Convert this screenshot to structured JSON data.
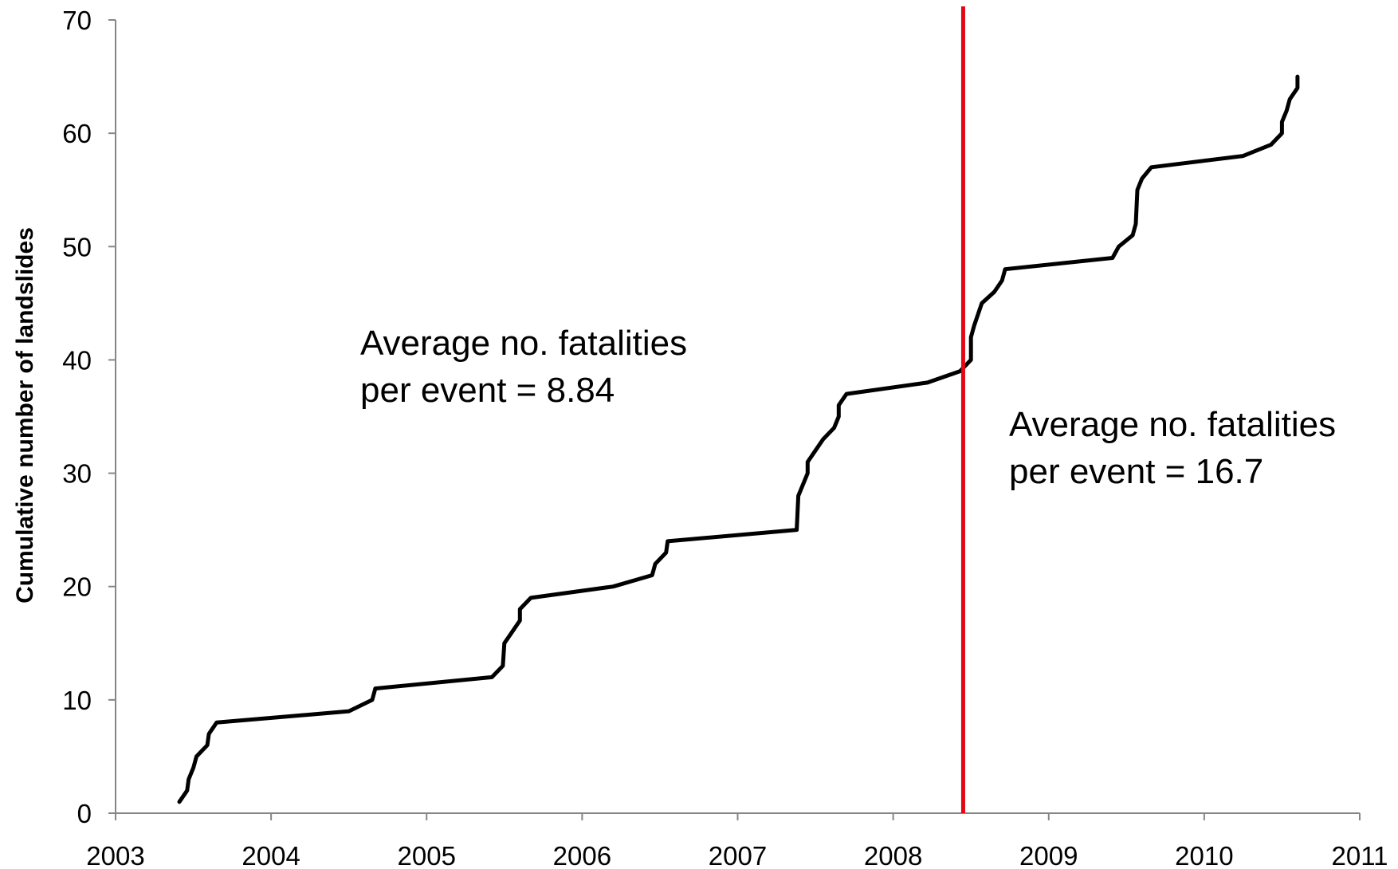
{
  "chart_data": {
    "type": "line",
    "title": "",
    "xlabel": "",
    "ylabel": "Cumulative number of landslides",
    "xlim": [
      2003,
      2011
    ],
    "ylim": [
      0,
      70
    ],
    "x_ticks": [
      "2003",
      "2004",
      "2005",
      "2006",
      "2007",
      "2008",
      "2009",
      "2010",
      "2011"
    ],
    "y_ticks": [
      "0",
      "10",
      "20",
      "30",
      "40",
      "50",
      "60",
      "70"
    ],
    "grid": false,
    "legend": "none",
    "series": [
      {
        "color": "#000000",
        "points": [
          [
            2003.41,
            1
          ],
          [
            2003.46,
            2
          ],
          [
            2003.47,
            3
          ],
          [
            2003.5,
            4
          ],
          [
            2003.52,
            5
          ],
          [
            2003.59,
            6
          ],
          [
            2003.6,
            7
          ],
          [
            2003.65,
            8
          ],
          [
            2004.5,
            9
          ],
          [
            2004.65,
            10
          ],
          [
            2004.67,
            11
          ],
          [
            2005.42,
            12
          ],
          [
            2005.49,
            13
          ],
          [
            2005.5,
            15
          ],
          [
            2005.55,
            16
          ],
          [
            2005.6,
            17
          ],
          [
            2005.6,
            18
          ],
          [
            2005.67,
            19
          ],
          [
            2006.2,
            20
          ],
          [
            2006.45,
            21
          ],
          [
            2006.47,
            22
          ],
          [
            2006.54,
            23
          ],
          [
            2006.55,
            24
          ],
          [
            2007.38,
            25
          ],
          [
            2007.39,
            28
          ],
          [
            2007.45,
            30
          ],
          [
            2007.45,
            31
          ],
          [
            2007.5,
            32
          ],
          [
            2007.55,
            33
          ],
          [
            2007.62,
            34
          ],
          [
            2007.65,
            35
          ],
          [
            2007.65,
            36
          ],
          [
            2007.7,
            37
          ],
          [
            2008.22,
            38
          ],
          [
            2008.43,
            39
          ],
          [
            2008.5,
            40
          ],
          [
            2008.5,
            42
          ],
          [
            2008.52,
            43
          ],
          [
            2008.57,
            45
          ],
          [
            2008.65,
            46
          ],
          [
            2008.7,
            47
          ],
          [
            2008.72,
            48
          ],
          [
            2009.41,
            49
          ],
          [
            2009.45,
            50
          ],
          [
            2009.54,
            51
          ],
          [
            2009.56,
            52
          ],
          [
            2009.57,
            55
          ],
          [
            2009.6,
            56
          ],
          [
            2009.66,
            57
          ],
          [
            2010.25,
            58
          ],
          [
            2010.43,
            59
          ],
          [
            2010.5,
            60
          ],
          [
            2010.5,
            61
          ],
          [
            2010.53,
            62
          ],
          [
            2010.55,
            63
          ],
          [
            2010.6,
            64
          ],
          [
            2010.6,
            65
          ]
        ]
      }
    ],
    "reference_line": {
      "x": 2008.45,
      "color": "#e30613"
    },
    "annotations": [
      {
        "id": "before",
        "lines": [
          "Average no. fatalities",
          "per event = 8.84"
        ]
      },
      {
        "id": "after",
        "lines": [
          "Average no. fatalities",
          "per event = 16.7"
        ]
      }
    ]
  }
}
